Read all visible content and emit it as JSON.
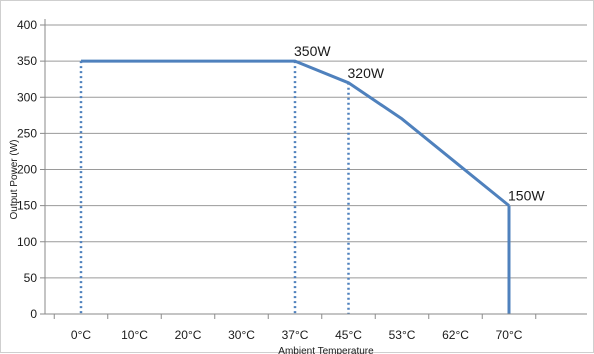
{
  "chart_data": {
    "type": "line",
    "xlabel": "Ambient Temperature",
    "ylabel": "Output Power (W)",
    "ylim": [
      0,
      400
    ],
    "yticks": [
      0,
      50,
      100,
      150,
      200,
      250,
      300,
      350,
      400
    ],
    "categories": [
      "0°C",
      "10°C",
      "20°C",
      "30°C",
      "37°C",
      "45°C",
      "53°C",
      "62°C",
      "70°C"
    ],
    "series": [
      {
        "values": [
          350,
          350,
          350,
          350,
          350,
          320,
          270,
          210,
          150
        ],
        "color": "#4f81bd"
      }
    ],
    "vertical_markers": [
      {
        "category": "0°C",
        "value": 350,
        "style": "dotted"
      },
      {
        "category": "37°C",
        "value": 350,
        "style": "dotted"
      },
      {
        "category": "45°C",
        "value": 320,
        "style": "dotted"
      },
      {
        "category": "70°C",
        "value": 150,
        "style": "solid"
      }
    ],
    "annotations": [
      {
        "category": "37°C",
        "value": 350,
        "text": "350W"
      },
      {
        "category": "45°C",
        "value": 320,
        "text": "320W"
      },
      {
        "category": "70°C",
        "value": 150,
        "text": "150W"
      }
    ],
    "grid": true,
    "legend": false,
    "colors": {
      "line": "#4f81bd",
      "grid": "#9a9a9a",
      "axis": "#8a8a8a"
    }
  }
}
